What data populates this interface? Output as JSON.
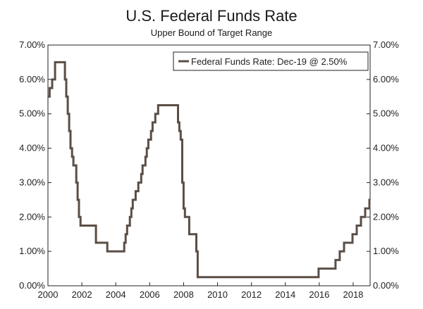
{
  "chart_data": {
    "type": "line",
    "title": "U.S. Federal Funds Rate",
    "subtitle": "Upper Bound of Target Range",
    "xlabel": "",
    "ylabel": "",
    "xlim": [
      2000,
      2019
    ],
    "ylim": [
      0,
      7
    ],
    "x_ticks": [
      2000,
      2002,
      2004,
      2006,
      2008,
      2010,
      2012,
      2014,
      2016,
      2018
    ],
    "x_tick_labels": [
      "2000",
      "2002",
      "2004",
      "2006",
      "2008",
      "2010",
      "2012",
      "2014",
      "2016",
      "2018"
    ],
    "y_ticks": [
      0,
      1,
      2,
      3,
      4,
      5,
      6,
      7
    ],
    "y_tick_labels": [
      "0.00%",
      "1.00%",
      "2.00%",
      "3.00%",
      "4.00%",
      "5.00%",
      "6.00%",
      "7.00%"
    ],
    "dual_y_axis": true,
    "grid": false,
    "legend_position": "top-right",
    "line_color": "#5a4e46",
    "series": [
      {
        "name": "Federal Funds Rate: Dec-19 @ 2.50%",
        "x": [
          2000.0,
          2000.1,
          2000.25,
          2000.42,
          2001.0,
          2001.08,
          2001.17,
          2001.25,
          2001.33,
          2001.42,
          2001.5,
          2001.67,
          2001.75,
          2001.83,
          2001.92,
          2002.83,
          2003.5,
          2004.5,
          2004.58,
          2004.67,
          2004.83,
          2004.92,
          2005.0,
          2005.17,
          2005.33,
          2005.5,
          2005.58,
          2005.75,
          2005.83,
          2005.92,
          2006.08,
          2006.17,
          2006.33,
          2006.5,
          2007.67,
          2007.75,
          2007.83,
          2007.92,
          2008.0,
          2008.08,
          2008.25,
          2008.33,
          2008.75,
          2008.83,
          2008.95,
          2015.96,
          2016.96,
          2017.21,
          2017.46,
          2017.96,
          2018.21,
          2018.46,
          2018.71,
          2018.96,
          2019.0
        ],
        "y": [
          5.5,
          5.75,
          6.0,
          6.5,
          6.0,
          5.5,
          5.0,
          4.5,
          4.0,
          3.75,
          3.5,
          3.0,
          2.5,
          2.0,
          1.75,
          1.25,
          1.0,
          1.25,
          1.5,
          1.75,
          2.0,
          2.25,
          2.5,
          2.75,
          3.0,
          3.25,
          3.5,
          3.75,
          4.0,
          4.25,
          4.5,
          4.75,
          5.0,
          5.25,
          4.75,
          4.5,
          4.25,
          3.0,
          2.25,
          2.0,
          2.0,
          1.5,
          1.0,
          0.25,
          0.25,
          0.5,
          0.75,
          1.0,
          1.25,
          1.5,
          1.75,
          2.0,
          2.25,
          2.5,
          2.5
        ]
      }
    ]
  }
}
